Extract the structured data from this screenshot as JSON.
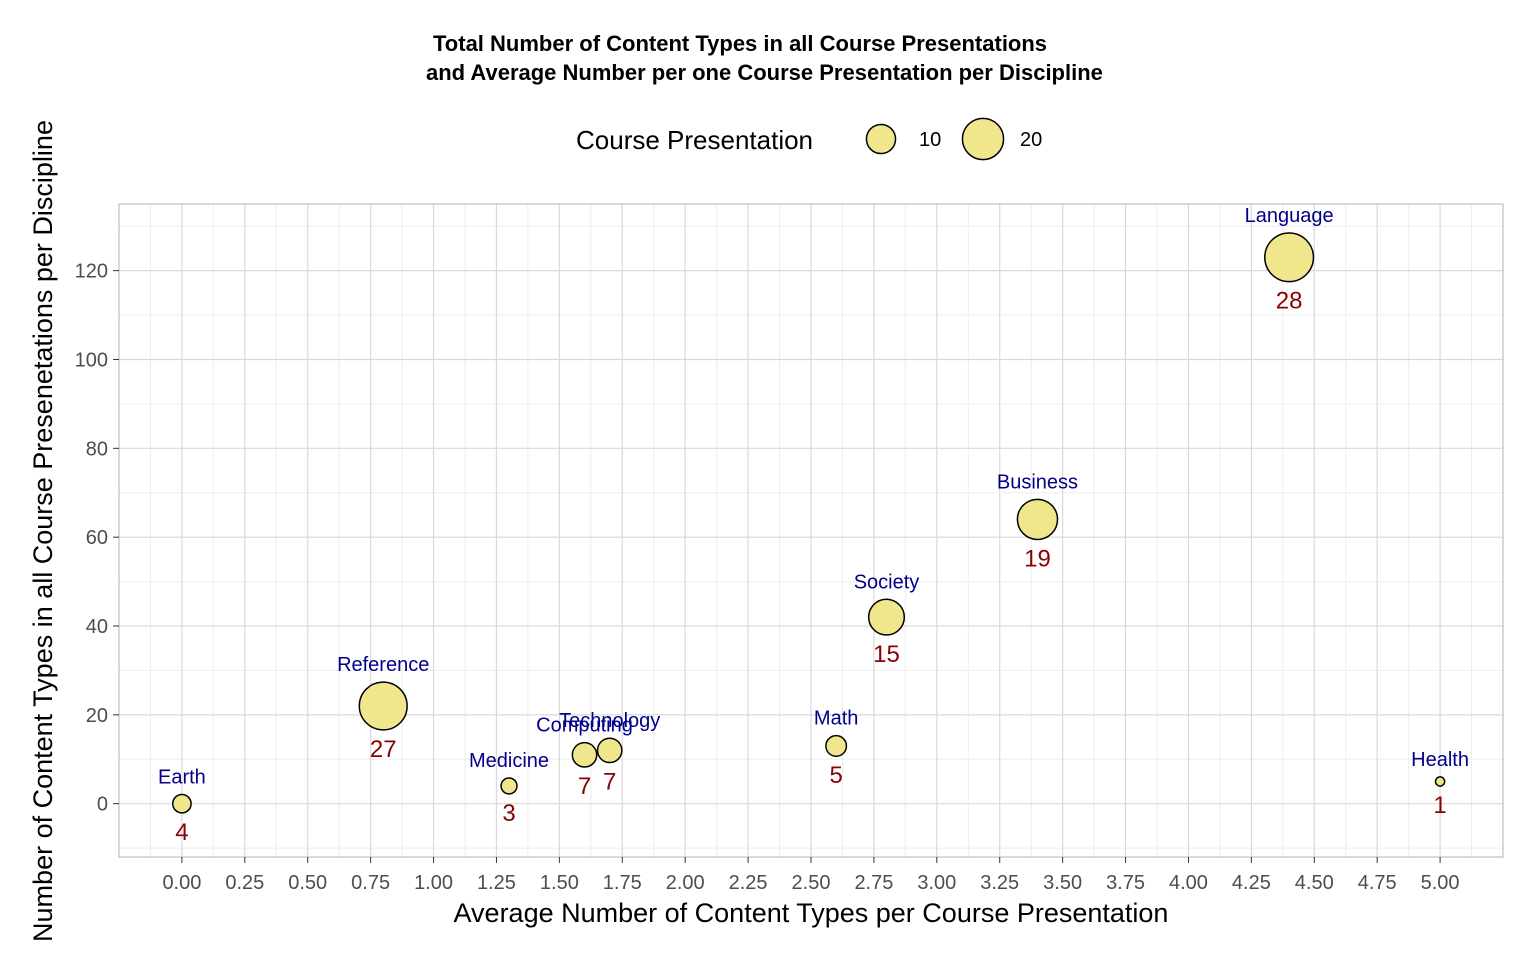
{
  "chart_data": {
    "type": "scatter",
    "title_line1": "Total Number of Content Types in all Course Presentations",
    "title_line2": "and Average Number per one Course Presentation per Discipline",
    "xlabel": "Average Number of Content Types per Course Presentation",
    "ylabel": "Number of Content Types in all Course Presenetations per Discipline",
    "xlim": [
      -0.25,
      5.25
    ],
    "ylim": [
      -12,
      135
    ],
    "x_ticks": [
      "0.00",
      "0.25",
      "0.50",
      "0.75",
      "1.00",
      "1.25",
      "1.50",
      "1.75",
      "2.00",
      "2.25",
      "2.50",
      "2.75",
      "3.00",
      "3.25",
      "3.50",
      "3.75",
      "4.00",
      "4.25",
      "4.50",
      "4.75",
      "5.00"
    ],
    "y_ticks": [
      "0",
      "20",
      "40",
      "60",
      "80",
      "100",
      "120"
    ],
    "grid": true,
    "legend": {
      "title": "Course Presentation",
      "position": "top",
      "entries": [
        {
          "label": "10",
          "size": 10
        },
        {
          "label": "20",
          "size": 20
        }
      ]
    },
    "colors": {
      "point_fill": "#f0e68c",
      "point_stroke": "#000000",
      "name_label": "#00008b",
      "count_label": "#8b0000",
      "grid_major": "#d9d9d9",
      "grid_minor": "#ededed",
      "panel_border": "#b3b3b3"
    },
    "points": [
      {
        "name": "Earth",
        "x": 0.0,
        "y": 0,
        "course_presentations": 4,
        "count_label": "4"
      },
      {
        "name": "Reference",
        "x": 0.8,
        "y": 22,
        "course_presentations": 27,
        "count_label": "27"
      },
      {
        "name": "Medicine",
        "x": 1.3,
        "y": 4,
        "course_presentations": 3,
        "count_label": "3"
      },
      {
        "name": "Computing",
        "x": 1.6,
        "y": 11,
        "course_presentations": 7,
        "count_label": "7"
      },
      {
        "name": "Technology",
        "x": 1.7,
        "y": 12,
        "course_presentations": 7,
        "count_label": "7"
      },
      {
        "name": "Math",
        "x": 2.6,
        "y": 13,
        "course_presentations": 5,
        "count_label": "5"
      },
      {
        "name": "Society",
        "x": 2.8,
        "y": 42,
        "course_presentations": 15,
        "count_label": "15"
      },
      {
        "name": "Business",
        "x": 3.4,
        "y": 64,
        "course_presentations": 19,
        "count_label": "19"
      },
      {
        "name": "Language",
        "x": 4.4,
        "y": 123,
        "course_presentations": 28,
        "count_label": "28"
      },
      {
        "name": "Health",
        "x": 5.0,
        "y": 5,
        "course_presentations": 1,
        "count_label": "1"
      }
    ]
  }
}
